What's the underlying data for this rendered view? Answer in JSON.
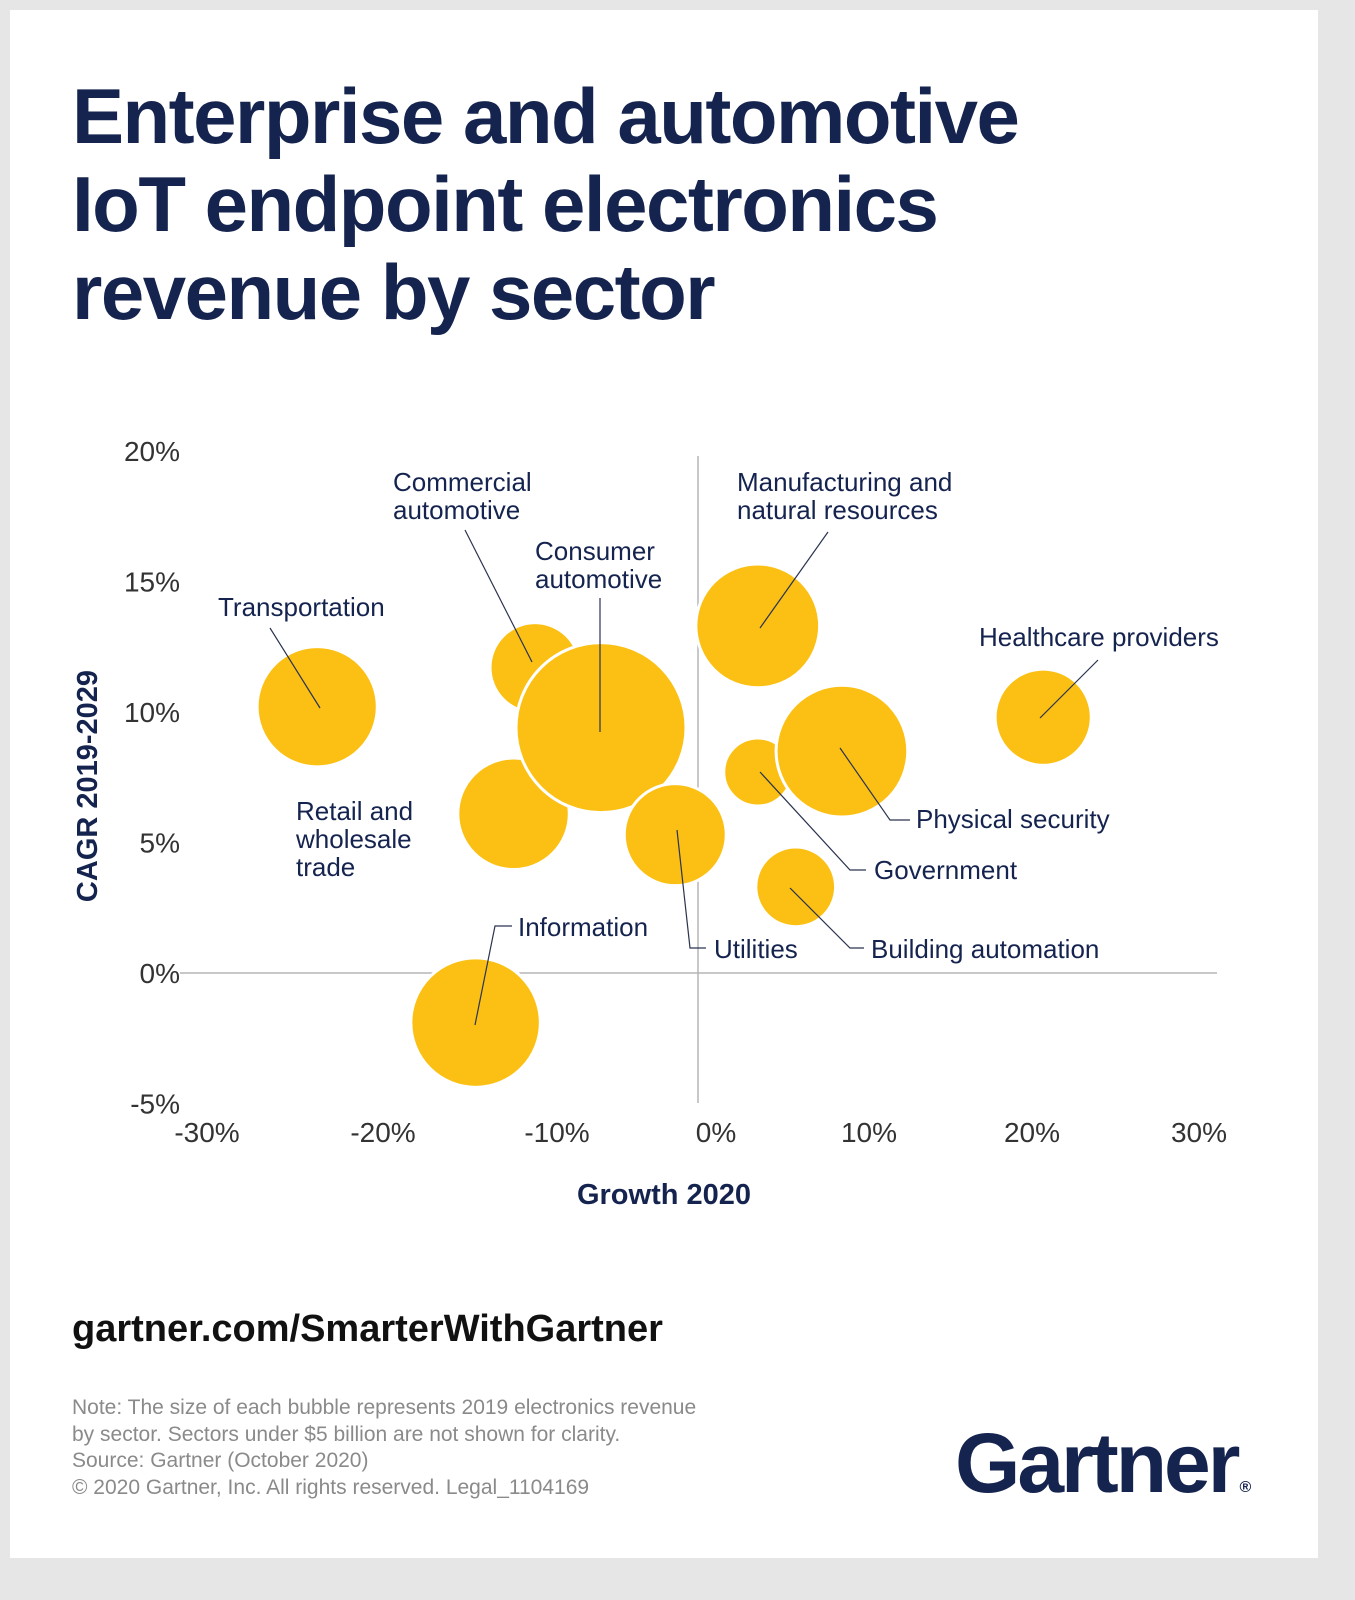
{
  "title_lines": [
    "Enterprise and automotive",
    "IoT endpoint electronics",
    "revenue by sector"
  ],
  "footer": {
    "url": "gartner.com/SmarterWithGartner",
    "notes": [
      "Note: The size of each bubble represents 2019 electronics revenue",
      "by sector. Sectors under $5 billion are not shown for clarity.",
      "Source: Gartner (October 2020)",
      "© 2020 Gartner, Inc. All rights reserved. Legal_1104169"
    ],
    "logo": "Gartner",
    "logo_mark": "®"
  },
  "colors": {
    "bubble": "#FBC013",
    "navy": "#15234f",
    "axis": "#b5b5b5"
  },
  "chart_data": {
    "type": "scatter",
    "subtype": "bubble",
    "xlabel": "Growth 2020",
    "ylabel": "CAGR 2019-2029",
    "xlim": [
      -30,
      30
    ],
    "ylim": [
      -5,
      20
    ],
    "xticks": [
      -30,
      -20,
      -10,
      0,
      10,
      20,
      30
    ],
    "yticks": [
      -5,
      0,
      5,
      10,
      15,
      20
    ],
    "xtick_labels": [
      "-30%",
      "-20%",
      "-10%",
      "0%",
      "10%",
      "20%",
      "30%"
    ],
    "ytick_labels": [
      "-5%",
      "0%",
      "5%",
      "10%",
      "15%",
      "20%"
    ],
    "size_meaning": "2019 electronics revenue (relative, largest = 100)",
    "points": [
      {
        "name": "Transportation",
        "label_lines": [
          "Transportation"
        ],
        "x": -23.2,
        "y": 10.2,
        "size": 50
      },
      {
        "name": "Commercial automotive",
        "label_lines": [
          "Commercial",
          "automotive"
        ],
        "x": -10.0,
        "y": 11.7,
        "size": 28
      },
      {
        "name": "Retail and wholesale trade",
        "label_lines": [
          "Retail and",
          "wholesale",
          "trade"
        ],
        "x": -11.3,
        "y": 6.1,
        "size": 43
      },
      {
        "name": "Information",
        "label_lines": [
          "Information"
        ],
        "x": -13.6,
        "y": -1.9,
        "size": 58
      },
      {
        "name": "Consumer automotive",
        "label_lines": [
          "Consumer",
          "automotive"
        ],
        "x": -6.0,
        "y": 9.4,
        "size": 100
      },
      {
        "name": "Utilities",
        "label_lines": [
          "Utilities"
        ],
        "x": -1.5,
        "y": 5.3,
        "size": 36
      },
      {
        "name": "Manufacturing and natural resources",
        "label_lines": [
          "Manufacturing and",
          "natural resources"
        ],
        "x": 3.5,
        "y": 13.3,
        "size": 53
      },
      {
        "name": "Government",
        "label_lines": [
          "Government"
        ],
        "x": 3.5,
        "y": 7.7,
        "size": 16
      },
      {
        "name": "Physical security",
        "label_lines": [
          "Physical security"
        ],
        "x": 8.6,
        "y": 8.5,
        "size": 60
      },
      {
        "name": "Building automation",
        "label_lines": [
          "Building automation"
        ],
        "x": 5.8,
        "y": 3.3,
        "size": 22
      },
      {
        "name": "Healthcare providers",
        "label_lines": [
          "Healthcare providers"
        ],
        "x": 20.8,
        "y": 9.8,
        "size": 32
      }
    ]
  }
}
